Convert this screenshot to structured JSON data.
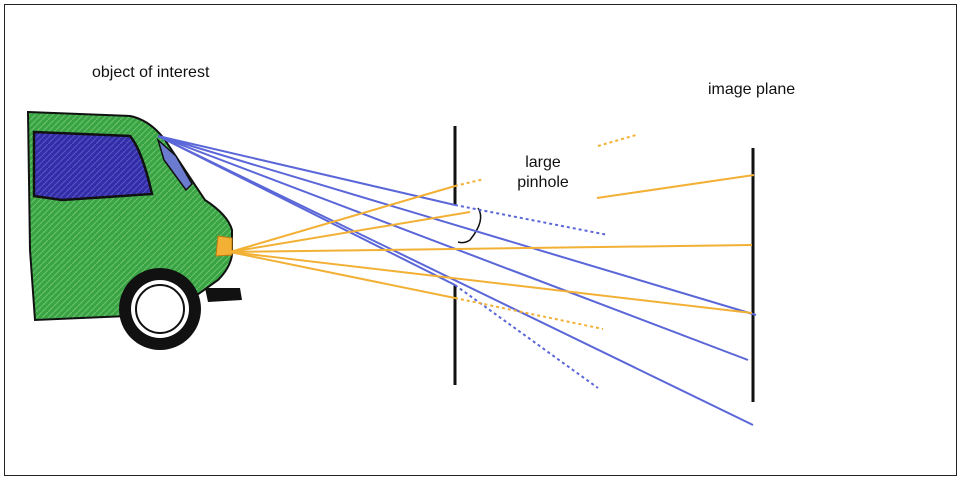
{
  "labels": {
    "object": "object of interest",
    "pinhole_line1": "large",
    "pinhole_line2": "pinhole",
    "image_plane": "image plane"
  },
  "colors": {
    "car_body": "#2f9a3a",
    "car_window": "#2f2aa0",
    "blue_ray": "#5b67d8",
    "orange_ray": "#f2b035",
    "outline": "#111111"
  },
  "icons": [
    "car-sketch",
    "wheel"
  ]
}
